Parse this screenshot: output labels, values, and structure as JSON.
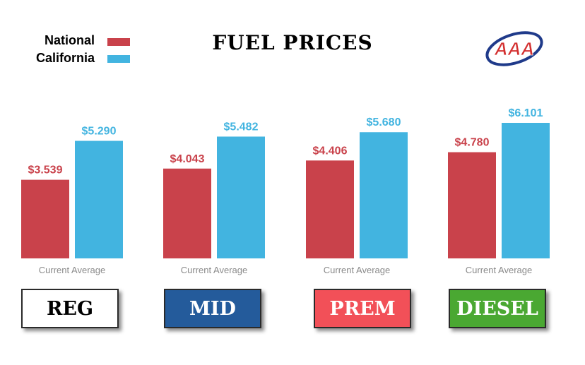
{
  "chart_data": {
    "type": "bar",
    "title": "FUEL PRICES",
    "categories": [
      "REG",
      "MID",
      "PREM",
      "DIESEL"
    ],
    "series": [
      {
        "name": "National",
        "color": "#c9424b",
        "values": [
          3.539,
          4.043,
          4.406,
          4.78
        ]
      },
      {
        "name": "California",
        "color": "#42b4e0",
        "values": [
          5.29,
          5.482,
          5.68,
          6.101
        ]
      }
    ],
    "value_labels": {
      "National": [
        "$3.539",
        "$4.043",
        "$4.406",
        "$4.780"
      ],
      "California": [
        "$5.290",
        "$5.482",
        "$5.680",
        "$6.101"
      ]
    },
    "xlabel": "Current Average",
    "ylim": [
      0,
      6.101
    ],
    "grid": false,
    "legend": "top-left"
  },
  "category_boxes": [
    {
      "label": "REG",
      "bg": "#ffffff",
      "fg": "#000000"
    },
    {
      "label": "MID",
      "bg": "#245b9b",
      "fg": "#ffffff"
    },
    {
      "label": "PREM",
      "bg": "#f25058",
      "fg": "#ffffff"
    },
    {
      "label": "DIESEL",
      "bg": "#4aa832",
      "fg": "#ffffff"
    }
  ],
  "logo": {
    "text": "AAA",
    "ring_color": "#1f3a8a",
    "text_color": "#d32f2f"
  }
}
